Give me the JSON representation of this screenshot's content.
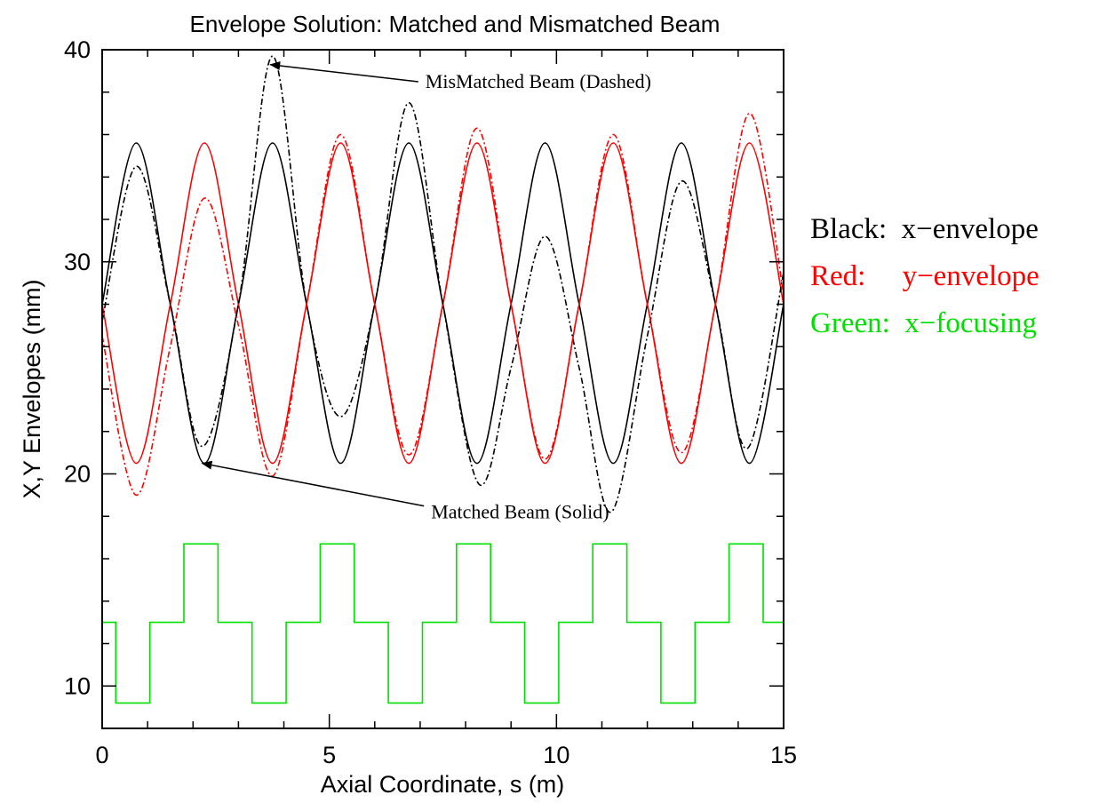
{
  "chart_data": {
    "type": "line",
    "title": "Envelope Solution: Matched and Mismatched Beam",
    "xlabel": "Axial Coordinate, s (m)",
    "ylabel": "X,Y Envelopes (mm)",
    "xlim": [
      0,
      15
    ],
    "ylim": [
      8,
      40
    ],
    "xticks": [
      0,
      5,
      10,
      15
    ],
    "yticks": [
      10,
      20,
      30,
      40
    ],
    "grid": false,
    "legend": {
      "placement": "right",
      "entries": [
        {
          "text": "Black:  x−envelope",
          "color": "#000000"
        },
        {
          "text": "Red:     y−envelope",
          "color": "#ff0000"
        },
        {
          "text": "Green:  x−focusing",
          "color": "#00e000"
        }
      ]
    },
    "annotations": [
      {
        "text": "MisMatched Beam (Dashed)",
        "x": 9.6,
        "y": 38.2,
        "arrow_to": [
          3.7,
          39.3
        ]
      },
      {
        "text": "Matched Beam (Solid)",
        "x": 9.2,
        "y": 17.9,
        "arrow_to": [
          2.2,
          20.5
        ]
      }
    ],
    "series": [
      {
        "style": "solid",
        "color": "#000000",
        "x": [
          0,
          0.75,
          1.5,
          2.25,
          3.0,
          3.75,
          4.5,
          5.25,
          6.0,
          6.75,
          7.5,
          8.25,
          9.0,
          9.75,
          10.5,
          11.25,
          12.0,
          12.75,
          13.5,
          14.25,
          15.0
        ],
        "y": [
          28.0,
          35.6,
          28.0,
          20.5,
          28.0,
          35.6,
          28.0,
          20.5,
          28.0,
          35.6,
          28.0,
          20.5,
          28.0,
          35.6,
          28.0,
          20.5,
          28.0,
          35.6,
          28.0,
          20.5,
          28.0
        ]
      },
      {
        "style": "solid",
        "color": "#ff0000",
        "x": [
          0,
          0.75,
          1.5,
          2.25,
          3.0,
          3.75,
          4.5,
          5.25,
          6.0,
          6.75,
          7.5,
          8.25,
          9.0,
          9.75,
          10.5,
          11.25,
          12.0,
          12.75,
          13.5,
          14.25,
          15.0
        ],
        "y": [
          28.0,
          20.5,
          28.0,
          35.6,
          28.0,
          20.5,
          28.0,
          35.6,
          28.0,
          20.5,
          28.0,
          35.6,
          28.0,
          20.5,
          28.0,
          35.6,
          28.0,
          20.5,
          28.0,
          35.6,
          28.0
        ]
      },
      {
        "style": "dashdot",
        "color": "#000000",
        "x": [
          0,
          0.75,
          1.5,
          2.2,
          3.0,
          3.75,
          4.5,
          5.25,
          6.0,
          6.75,
          7.5,
          8.3,
          9.0,
          9.75,
          10.5,
          11.2,
          12.0,
          12.75,
          13.5,
          14.2,
          15.0
        ],
        "y": [
          27.2,
          34.5,
          28.0,
          21.3,
          28.0,
          39.7,
          28.0,
          22.7,
          28.0,
          37.5,
          28.0,
          19.5,
          25.0,
          31.2,
          25.0,
          18.2,
          26.5,
          33.8,
          28.0,
          21.2,
          29.5
        ]
      },
      {
        "style": "dashdot",
        "color": "#ff0000",
        "x": [
          0,
          0.75,
          1.5,
          2.25,
          3.0,
          3.75,
          4.5,
          5.25,
          6.0,
          6.75,
          7.5,
          8.25,
          9.0,
          9.75,
          10.5,
          11.25,
          12.0,
          12.75,
          13.5,
          14.25,
          15.0
        ],
        "y": [
          26.5,
          19.0,
          26.0,
          33.0,
          27.0,
          19.9,
          28.0,
          36.0,
          28.0,
          20.9,
          28.0,
          36.3,
          28.0,
          20.7,
          28.0,
          36.0,
          28.0,
          21.0,
          28.0,
          37.0,
          28.5
        ]
      },
      {
        "style": "step",
        "color": "#00e000",
        "x": [
          0,
          0.3,
          0.3,
          1.05,
          1.05,
          1.8,
          1.8,
          2.55,
          2.55,
          3.3,
          3.3,
          4.05,
          4.05,
          4.8,
          4.8,
          5.55,
          5.55,
          6.3,
          6.3,
          7.05,
          7.05,
          7.8,
          7.8,
          8.55,
          8.55,
          9.3,
          9.3,
          10.05,
          10.05,
          10.8,
          10.8,
          11.55,
          11.55,
          12.3,
          12.3,
          13.05,
          13.05,
          13.8,
          13.8,
          14.55,
          14.55,
          15.0
        ],
        "y": [
          13,
          13,
          9.2,
          9.2,
          13,
          13,
          16.7,
          16.7,
          13,
          13,
          9.2,
          9.2,
          13,
          13,
          16.7,
          16.7,
          13,
          13,
          9.2,
          9.2,
          13,
          13,
          16.7,
          16.7,
          13,
          13,
          9.2,
          9.2,
          13,
          13,
          16.7,
          16.7,
          13,
          13,
          9.2,
          9.2,
          13,
          13,
          16.7,
          16.7,
          13,
          13
        ]
      }
    ]
  }
}
